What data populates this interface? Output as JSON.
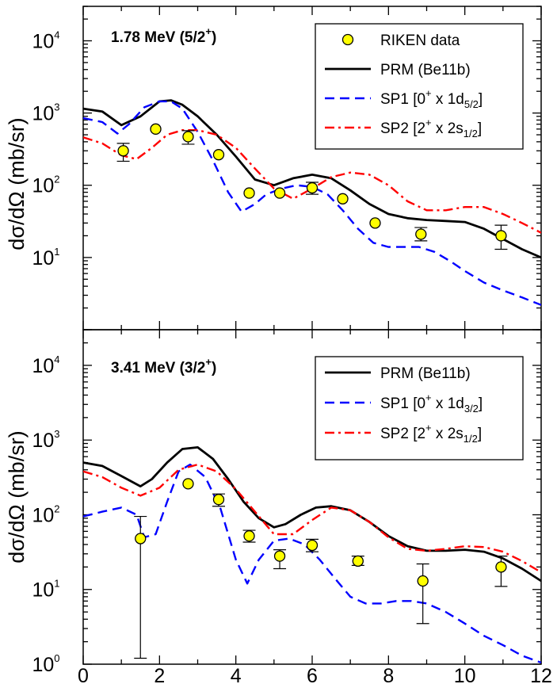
{
  "chart_data": [
    {
      "type": "line",
      "title": "1.78 MeV (5/2+)",
      "title_parts": {
        "main": "1.78 MeV (5/2",
        "sup": "+",
        "close": ")"
      },
      "xlabel": "",
      "ylabel": "dσ/dΩ  (mb/sr)",
      "xlim": [
        0,
        12
      ],
      "ylim": [
        1,
        30000
      ],
      "yscale": "log",
      "x_ticks": [
        0,
        2,
        4,
        6,
        8,
        10,
        12
      ],
      "y_ticks": [
        {
          "value": 10,
          "base": "10",
          "exp": "1"
        },
        {
          "value": 100,
          "base": "10",
          "exp": "2"
        },
        {
          "value": 1000,
          "base": "10",
          "exp": "3"
        },
        {
          "value": 10000,
          "base": "10",
          "exp": "4"
        }
      ],
      "legend_position": "top-right",
      "series": [
        {
          "name": "RIKEN data",
          "kind": "points",
          "color": "#ffff00",
          "legend": {
            "main": "RIKEN data"
          },
          "points": [
            {
              "x": 1.05,
              "y": 300,
              "lo": 215,
              "hi": 380
            },
            {
              "x": 1.9,
              "y": 600
            },
            {
              "x": 2.75,
              "y": 470,
              "lo": 370,
              "hi": 570
            },
            {
              "x": 3.55,
              "y": 265
            },
            {
              "x": 4.35,
              "y": 78
            },
            {
              "x": 5.15,
              "y": 78
            },
            {
              "x": 6.0,
              "y": 92,
              "lo": 75,
              "hi": 110
            },
            {
              "x": 6.8,
              "y": 65
            },
            {
              "x": 7.65,
              "y": 30
            },
            {
              "x": 8.85,
              "y": 21,
              "lo": 17,
              "hi": 26
            },
            {
              "x": 10.95,
              "y": 20,
              "lo": 13,
              "hi": 28
            }
          ]
        },
        {
          "name": "PRM (Be11b)",
          "kind": "line",
          "color": "#000000",
          "dash": "",
          "width": 2.8,
          "legend": {
            "main": "PRM (Be11b)"
          },
          "x": [
            0,
            0.5,
            1.0,
            1.5,
            2.0,
            2.3,
            2.6,
            3.0,
            3.5,
            4.0,
            4.5,
            5.0,
            5.5,
            6.0,
            6.5,
            7.0,
            7.5,
            8.0,
            8.5,
            9.0,
            9.5,
            10.0,
            10.5,
            11.0,
            11.5,
            12.0
          ],
          "y": [
            1150,
            1050,
            680,
            900,
            1450,
            1500,
            1300,
            900,
            500,
            250,
            120,
            100,
            125,
            140,
            125,
            85,
            55,
            40,
            35,
            33,
            32,
            31,
            25,
            18,
            13,
            10
          ]
        },
        {
          "name": "SP1 [0+ x 1d5/2]",
          "kind": "line",
          "color": "#0000ff",
          "dash": "12,7",
          "width": 2.4,
          "legend": {
            "main": "SP1 [0",
            "sup": "+",
            "mid": " x 1d",
            "sub": "5/2",
            "close": "]"
          },
          "x": [
            0,
            0.5,
            0.9,
            1.2,
            1.6,
            2.0,
            2.3,
            2.6,
            3.0,
            3.4,
            3.8,
            4.15,
            4.5,
            4.8,
            5.2,
            5.6,
            6.0,
            6.4,
            6.8,
            7.2,
            7.6,
            8.0,
            8.4,
            8.8,
            9.2,
            9.6,
            10.0,
            10.5,
            11.0,
            11.5,
            12.0
          ],
          "y": [
            850,
            750,
            520,
            700,
            1200,
            1450,
            1450,
            1150,
            550,
            220,
            80,
            43,
            55,
            75,
            90,
            100,
            95,
            75,
            45,
            25,
            16,
            14,
            14,
            14,
            12,
            9,
            6.5,
            4.5,
            3.5,
            2.8,
            2.2
          ]
        },
        {
          "name": "SP2 [2+ x 2s1/2]",
          "kind": "line",
          "color": "#ff0000",
          "dash": "12,5,3,5",
          "width": 2.4,
          "legend": {
            "main": "SP2 [2",
            "sup": "+",
            "mid": " x 2s",
            "sub": "1/2",
            "close": "]"
          },
          "x": [
            0,
            0.5,
            1.0,
            1.4,
            1.8,
            2.2,
            2.6,
            3.0,
            3.5,
            4.0,
            4.5,
            5.0,
            5.5,
            6.0,
            6.5,
            7.0,
            7.5,
            8.0,
            8.5,
            9.0,
            9.5,
            10.0,
            10.5,
            11.0,
            11.5,
            12.0
          ],
          "y": [
            460,
            380,
            260,
            230,
            330,
            500,
            580,
            580,
            500,
            330,
            170,
            90,
            65,
            90,
            130,
            150,
            140,
            100,
            60,
            45,
            45,
            50,
            50,
            40,
            30,
            22
          ]
        }
      ]
    },
    {
      "type": "line",
      "title": "3.41 MeV (3/2+)",
      "title_parts": {
        "main": "3.41 MeV (3/2",
        "sup": "+",
        "close": ")"
      },
      "xlabel": "",
      "ylabel": "dσ/dΩ  (mb/sr)",
      "xlim": [
        0,
        12
      ],
      "ylim": [
        1,
        30000
      ],
      "yscale": "log",
      "x_ticks": [
        0,
        2,
        4,
        6,
        8,
        10,
        12
      ],
      "y_ticks": [
        {
          "value": 1,
          "base": "10",
          "exp": "0"
        },
        {
          "value": 10,
          "base": "10",
          "exp": "1"
        },
        {
          "value": 100,
          "base": "10",
          "exp": "2"
        },
        {
          "value": 1000,
          "base": "10",
          "exp": "3"
        },
        {
          "value": 10000,
          "base": "10",
          "exp": "4"
        }
      ],
      "legend_position": "top-right",
      "series": [
        {
          "name": "RIKEN data",
          "kind": "points",
          "color": "#ffff00",
          "in_legend": false,
          "points": [
            {
              "x": 1.5,
              "y": 48,
              "lo": 1.2,
              "hi": 95
            },
            {
              "x": 2.75,
              "y": 260
            },
            {
              "x": 3.55,
              "y": 160,
              "lo": 130,
              "hi": 190
            },
            {
              "x": 4.35,
              "y": 52,
              "lo": 43,
              "hi": 62
            },
            {
              "x": 5.15,
              "y": 28,
              "lo": 19,
              "hi": 34
            },
            {
              "x": 6.0,
              "y": 39,
              "lo": 32,
              "hi": 47
            },
            {
              "x": 7.2,
              "y": 24,
              "lo": 21,
              "hi": 28
            },
            {
              "x": 8.9,
              "y": 13,
              "lo": 3.5,
              "hi": 22
            },
            {
              "x": 10.95,
              "y": 20,
              "lo": 11,
              "hi": 28
            }
          ]
        },
        {
          "name": "PRM (Be11b)",
          "kind": "line",
          "color": "#000000",
          "dash": "",
          "width": 2.8,
          "legend": {
            "main": "PRM (Be11b)"
          },
          "x": [
            0,
            0.5,
            1.0,
            1.5,
            1.8,
            2.2,
            2.6,
            3.0,
            3.4,
            3.8,
            4.2,
            4.6,
            5.0,
            5.3,
            5.7,
            6.1,
            6.5,
            7.0,
            7.5,
            8.0,
            8.5,
            9.0,
            9.5,
            10.0,
            10.5,
            11.0,
            11.5,
            12.0
          ],
          "y": [
            500,
            450,
            330,
            240,
            300,
            500,
            760,
            800,
            560,
            300,
            150,
            90,
            68,
            75,
            100,
            125,
            130,
            115,
            80,
            52,
            38,
            33,
            33,
            34,
            32,
            26,
            19,
            13
          ]
        },
        {
          "name": "SP1 [0+ x 1d3/2]",
          "kind": "line",
          "color": "#0000ff",
          "dash": "12,7",
          "width": 2.4,
          "legend": {
            "main": "SP1 [0",
            "sup": "+",
            "mid": " x 1d",
            "sub": "3/2",
            "close": "]"
          },
          "x": [
            0,
            0.5,
            1.0,
            1.4,
            1.6,
            1.9,
            2.2,
            2.5,
            2.8,
            3.2,
            3.6,
            4.0,
            4.3,
            4.6,
            5.0,
            5.4,
            5.8,
            6.2,
            6.6,
            7.0,
            7.4,
            7.8,
            8.2,
            8.6,
            9.0,
            9.5,
            10.0,
            10.5,
            11.0,
            11.5,
            12.0
          ],
          "y": [
            95,
            110,
            125,
            100,
            50,
            55,
            150,
            380,
            470,
            320,
            120,
            25,
            12,
            25,
            45,
            48,
            40,
            25,
            14,
            8,
            6.5,
            6.5,
            7,
            7,
            6.5,
            5,
            3.5,
            2.4,
            1.8,
            1.3,
            1.05
          ]
        },
        {
          "name": "SP2 [2+ x 2s1/2]",
          "kind": "line",
          "color": "#ff0000",
          "dash": "12,5,3,5",
          "width": 2.4,
          "legend": {
            "main": "SP2 [2",
            "sup": "+",
            "mid": " x 2s",
            "sub": "1/2",
            "close": "]"
          },
          "x": [
            0,
            0.5,
            1.0,
            1.5,
            2.0,
            2.5,
            3.0,
            3.5,
            4.0,
            4.5,
            5.0,
            5.5,
            6.0,
            6.5,
            7.0,
            7.5,
            8.0,
            8.5,
            9.0,
            9.5,
            10.0,
            10.5,
            11.0,
            11.5,
            12.0
          ],
          "y": [
            380,
            320,
            230,
            180,
            230,
            400,
            470,
            380,
            220,
            110,
            55,
            55,
            85,
            125,
            115,
            80,
            50,
            35,
            33,
            35,
            38,
            37,
            32,
            24,
            17
          ]
        }
      ]
    }
  ]
}
